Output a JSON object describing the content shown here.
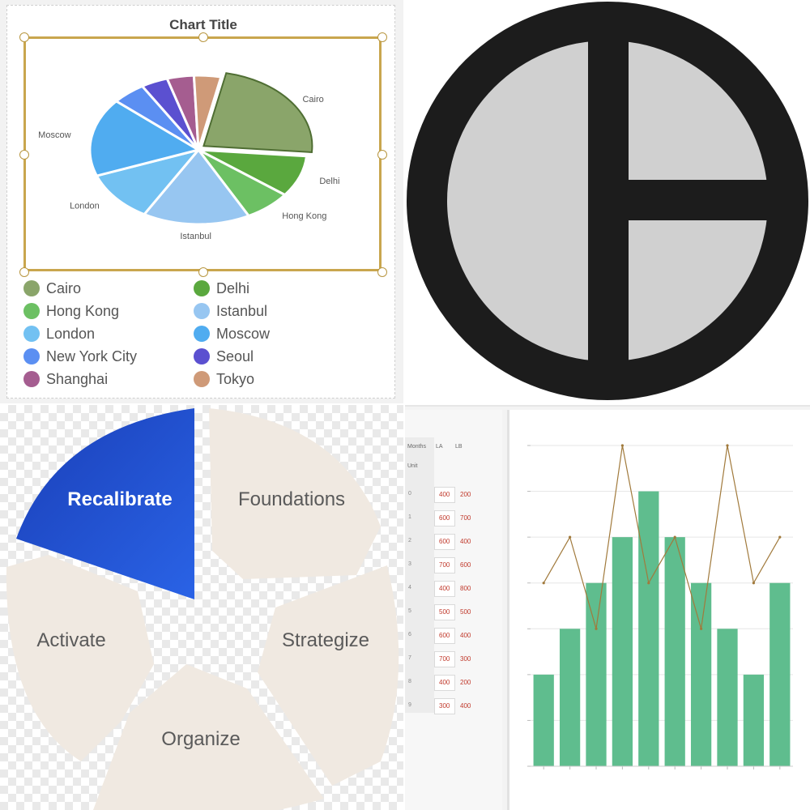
{
  "panel_pie": {
    "title": "Chart Title",
    "slices": [
      {
        "name": "Cairo",
        "value": 23,
        "color": "#8aa56a",
        "edge": "#4f6e33"
      },
      {
        "name": "Delhi",
        "value": 9,
        "color": "#5aa83e",
        "edge": "#5aa83e"
      },
      {
        "name": "Hong Kong",
        "value": 7,
        "color": "#6cc063",
        "edge": "#6cc063"
      },
      {
        "name": "Istanbul",
        "value": 16,
        "color": "#97c6f1",
        "edge": "#97c6f1"
      },
      {
        "name": "London",
        "value": 11,
        "color": "#72c1f2",
        "edge": "#72c1f2"
      },
      {
        "name": "Moscow",
        "value": 17,
        "color": "#50acf0",
        "edge": "#50acf0"
      },
      {
        "name": "New York City",
        "value": 5,
        "color": "#5b8ff2",
        "edge": "#5b8ff2"
      },
      {
        "name": "Seoul",
        "value": 4,
        "color": "#5b50d0",
        "edge": "#5b50d0"
      },
      {
        "name": "Shanghai",
        "value": 4,
        "color": "#a55d90",
        "edge": "#a55d90"
      },
      {
        "name": "Tokyo",
        "value": 4,
        "color": "#cf9a78",
        "edge": "#cf9a78"
      }
    ],
    "shown_labels": [
      "Cairo",
      "Delhi",
      "Hong Kong",
      "Istanbul",
      "London",
      "Moscow"
    ]
  },
  "panel_symbol": {
    "icon": "circle-divided-icon",
    "ring_color": "#1c1c1c",
    "fill_color": "#d0d0d0"
  },
  "panel_cycle": {
    "segments": [
      {
        "label": "Recalibrate",
        "active": true
      },
      {
        "label": "Foundations",
        "active": false
      },
      {
        "label": "Strategize",
        "active": false
      },
      {
        "label": "Organize",
        "active": false
      },
      {
        "label": "Activate",
        "active": false
      }
    ],
    "active_color": "#1f4fcf",
    "inactive_color": "#f0e9e1"
  },
  "panel_bars": {
    "sheet_headers": [
      "Months",
      "LA",
      "LB",
      "Unit"
    ],
    "rows": [
      {
        "n": "0",
        "a": "400",
        "b": "200"
      },
      {
        "n": "1",
        "a": "600",
        "b": "700"
      },
      {
        "n": "2",
        "a": "600",
        "b": "400"
      },
      {
        "n": "3",
        "a": "700",
        "b": "600"
      },
      {
        "n": "4",
        "a": "400",
        "b": "800"
      },
      {
        "n": "5",
        "a": "500",
        "b": "500"
      },
      {
        "n": "6",
        "a": "600",
        "b": "400"
      },
      {
        "n": "7",
        "a": "700",
        "b": "300"
      },
      {
        "n": "8",
        "a": "400",
        "b": "200"
      },
      {
        "n": "9",
        "a": "300",
        "b": "400"
      }
    ],
    "bar_color": "#5fbd8e",
    "line_color": "#a17a3c"
  },
  "chart_data": [
    {
      "type": "pie",
      "title": "Chart Title",
      "categories": [
        "Cairo",
        "Delhi",
        "Hong Kong",
        "Istanbul",
        "London",
        "Moscow",
        "New York City",
        "Seoul",
        "Shanghai",
        "Tokyo"
      ],
      "values": [
        23,
        9,
        7,
        16,
        11,
        17,
        5,
        4,
        4,
        4
      ],
      "legend": "bottom"
    },
    {
      "type": "bar",
      "categories": [
        "1",
        "2",
        "3",
        "4",
        "5",
        "6",
        "7",
        "8",
        "9",
        "10"
      ],
      "series": [
        {
          "type": "bar",
          "values": [
            2,
            3,
            4,
            5,
            6,
            5,
            4,
            3,
            2,
            4
          ]
        },
        {
          "type": "line",
          "values": [
            4,
            5,
            3,
            7,
            4,
            5,
            3,
            7,
            4,
            5
          ]
        }
      ],
      "ylim": [
        0,
        7
      ],
      "grid": true
    }
  ]
}
